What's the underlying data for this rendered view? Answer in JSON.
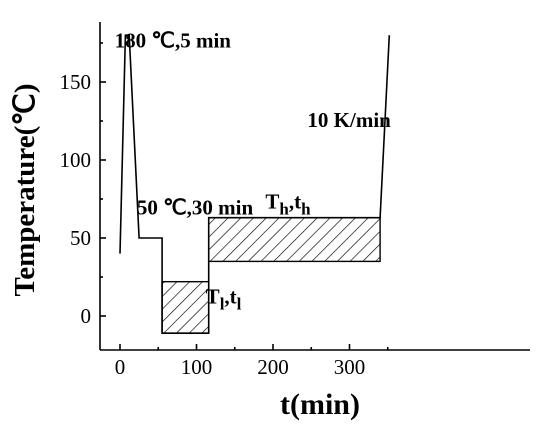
{
  "chart_data": {
    "type": "line",
    "xlabel": "t(min)",
    "ylabel": "Temperature(℃)",
    "xlim": [
      -10,
      360
    ],
    "ylim": [
      -20,
      190
    ],
    "x_ticks": [
      0,
      100,
      200,
      300
    ],
    "y_ticks": [
      0,
      50,
      100,
      150
    ],
    "grid": false,
    "series": [
      {
        "x": [
          0,
          7,
          12,
          25,
          55,
          55,
          116,
          116,
          340,
          352
        ],
        "y": [
          40,
          180,
          180,
          50,
          50,
          -11,
          -11,
          63,
          63,
          180
        ]
      }
    ],
    "regions": [
      {
        "x0": 55,
        "x1": 116,
        "y0": -11,
        "y1": 22,
        "fill": "diagonal-hatch"
      },
      {
        "x0": 116,
        "x1": 340,
        "y0": 35,
        "y1": 63,
        "fill": "diagonal-hatch"
      }
    ],
    "annotations": [
      {
        "text": "180 ℃,5 min",
        "x": -7,
        "y": 172
      },
      {
        "text": "50 ℃,30 min",
        "x": 22,
        "y": 65
      },
      {
        "text": "10 K/min",
        "x": 245,
        "y": 121
      },
      {
        "main": "T",
        "sub": "h",
        "sep": ",",
        "main2": "t",
        "sub2": "h",
        "x": 190,
        "y": 69
      },
      {
        "main": "T",
        "sub": "l",
        "sep": ",",
        "main2": "t",
        "sub2": "l",
        "x": 112,
        "y": 8
      }
    ]
  }
}
